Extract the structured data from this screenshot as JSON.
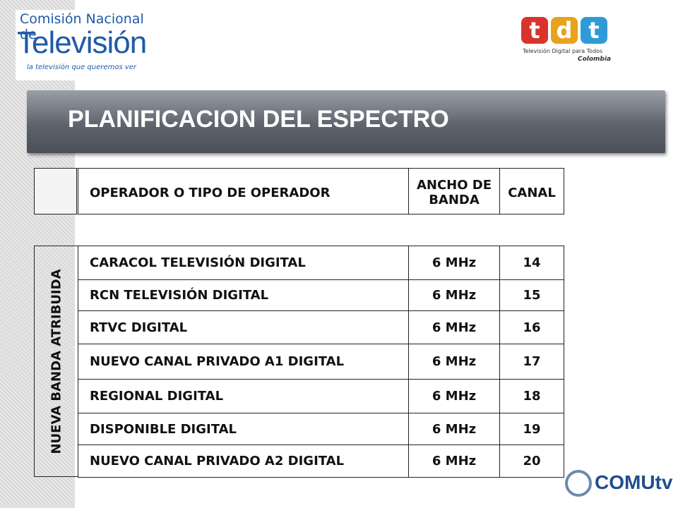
{
  "logo_left": {
    "line1": "Comisión Nacional de",
    "line2": "Televisión",
    "tagline": "la televisión que queremos ver"
  },
  "logo_right": {
    "letters": [
      "t",
      "d",
      "t"
    ],
    "tagline": "Televisión Digital para Todos",
    "country": "Colombia"
  },
  "title": "PLANIFICACION DEL ESPECTRO",
  "table": {
    "header": [
      "OPERADOR O TIPO DE OPERADOR",
      "ANCHO DE BANDA",
      "CANAL"
    ],
    "group_label": "NUEVA BANDA ATRIBUIDA",
    "rows": [
      [
        "CARACOL TELEVISIÓN DIGITAL",
        "6 MHz",
        "14"
      ],
      [
        "RCN TELEVISIÓN DIGITAL",
        "6 MHz",
        "15"
      ],
      [
        "RTVC DIGITAL",
        "6 MHz",
        "16"
      ],
      [
        "NUEVO CANAL PRIVADO A1 DIGITAL",
        "6 MHz",
        "17"
      ],
      [
        "REGIONAL DIGITAL",
        "6 MHz",
        "18"
      ],
      [
        "DISPONIBLE DIGITAL",
        "6 MHz",
        "19"
      ],
      [
        "NUEVO CANAL PRIVADO A2 DIGITAL",
        "6 MHz",
        "20"
      ]
    ]
  },
  "logo_bottom": "COMUtv"
}
